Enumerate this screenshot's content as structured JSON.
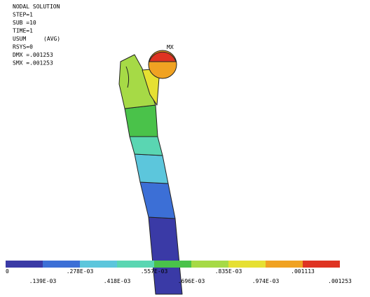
{
  "header": {
    "lines": [
      "NODAL SOLUTION",
      "STEP=1",
      "SUB =10",
      "TIME=1",
      "USUM",
      "RSYS=0",
      "DMX =.001253",
      "SMX =.001253"
    ],
    "avg_tag": "(AVG)"
  },
  "max_label": "MX",
  "legend": {
    "items": [
      {
        "label": "0",
        "color": "#3a3aa6"
      },
      {
        "label": ".139E-03",
        "color": "#3c6fd6"
      },
      {
        "label": ".278E-03",
        "color": "#5cc6dc"
      },
      {
        "label": ".418E-03",
        "color": "#5ad6b2"
      },
      {
        "label": ".557E-03",
        "color": "#4ac24a"
      },
      {
        "label": ".696E-03",
        "color": "#a6da46"
      },
      {
        "label": ".835E-03",
        "color": "#e6e032"
      },
      {
        "label": ".974E-03",
        "color": "#f0a222"
      },
      {
        "label": ".001113",
        "color": "#df3322"
      }
    ],
    "end_label": ".001253"
  }
}
